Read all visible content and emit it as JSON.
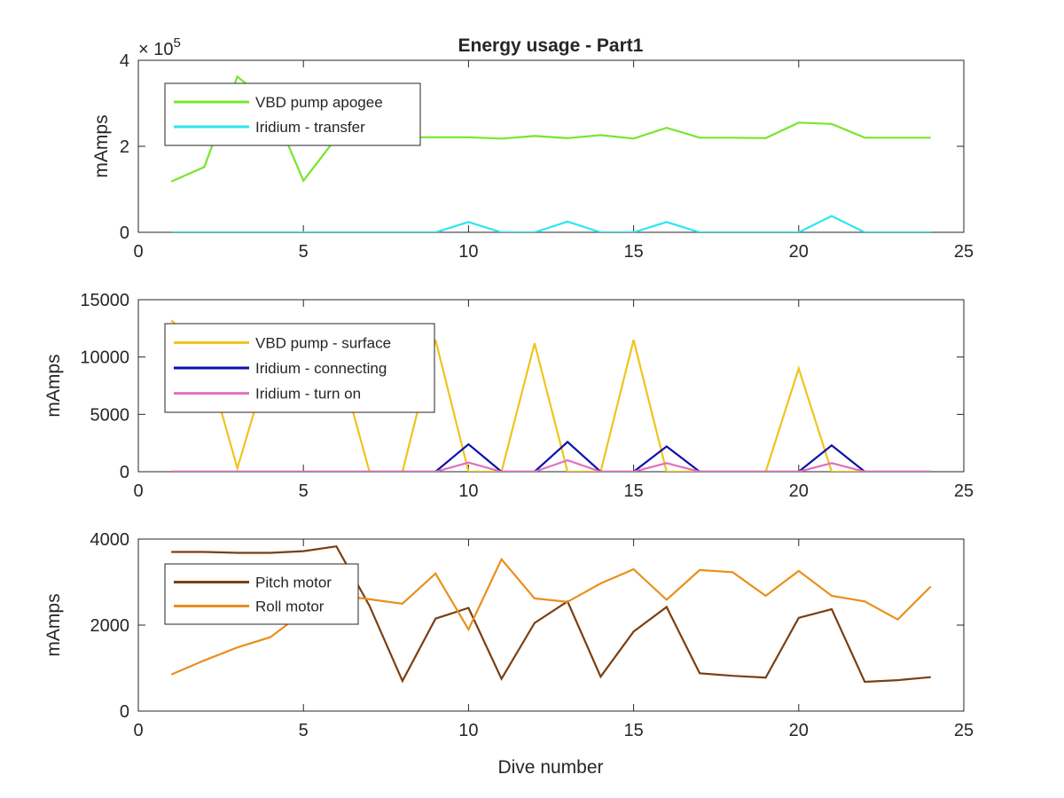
{
  "figure": {
    "title": "Energy usage - Part1",
    "xlabel": "Dive number"
  },
  "chart_data": [
    {
      "type": "line",
      "title": "Energy usage - Part1",
      "xlabel": "",
      "ylabel": "mAmps",
      "xlim": [
        0,
        25
      ],
      "ylim": [
        0,
        400000
      ],
      "xticks": [
        0,
        5,
        10,
        15,
        20,
        25
      ],
      "yticks": [
        0,
        200000,
        400000
      ],
      "ytick_labels": [
        "0",
        "2",
        "4"
      ],
      "y_exponent_base": "× 10",
      "y_exponent_power": "5",
      "grid": false,
      "legend_position": "top-left",
      "series": [
        {
          "name": "VBD pump apogee",
          "color": "#77e62c",
          "x": [
            1,
            2,
            3,
            4,
            5,
            6,
            7,
            8,
            9,
            10,
            11,
            12,
            13,
            14,
            15,
            16,
            17,
            18,
            19,
            20,
            21,
            22,
            23,
            24
          ],
          "values": [
            118000,
            152000,
            362000,
            300000,
            120000,
            220000,
            225000,
            221000,
            221000,
            221000,
            218000,
            224000,
            219000,
            226000,
            218000,
            243000,
            220000,
            220000,
            219000,
            255000,
            252000,
            220000,
            220000,
            220000
          ]
        },
        {
          "name": "Iridium - transfer",
          "color": "#2ce6f0",
          "x": [
            1,
            2,
            3,
            4,
            5,
            6,
            7,
            8,
            9,
            10,
            11,
            12,
            13,
            14,
            15,
            16,
            17,
            18,
            19,
            20,
            21,
            22,
            23,
            24
          ],
          "values": [
            0,
            0,
            0,
            0,
            0,
            0,
            0,
            0,
            0,
            24000,
            0,
            0,
            25000,
            0,
            0,
            24000,
            0,
            0,
            0,
            0,
            38000,
            0,
            0,
            0
          ]
        }
      ]
    },
    {
      "type": "line",
      "xlabel": "",
      "ylabel": "mAmps",
      "xlim": [
        0,
        25
      ],
      "ylim": [
        0,
        15000
      ],
      "xticks": [
        0,
        5,
        10,
        15,
        20,
        25
      ],
      "yticks": [
        0,
        5000,
        10000,
        15000
      ],
      "grid": false,
      "legend_position": "top-left",
      "series": [
        {
          "name": "VBD pump - surface",
          "color": "#f0c41c",
          "x": [
            1,
            2,
            3,
            4,
            5,
            6,
            7,
            8,
            9,
            10,
            11,
            12,
            13,
            14,
            15,
            16,
            17,
            18,
            19,
            20,
            21,
            22,
            23,
            24
          ],
          "values": [
            13200,
            10500,
            300,
            10000,
            10500,
            10500,
            0,
            0,
            11500,
            0,
            0,
            11200,
            0,
            0,
            11500,
            0,
            0,
            0,
            0,
            9000,
            0,
            0,
            0,
            0
          ]
        },
        {
          "name": "Iridium - connecting",
          "color": "#0a12a8",
          "x": [
            1,
            2,
            3,
            4,
            5,
            6,
            7,
            8,
            9,
            10,
            11,
            12,
            13,
            14,
            15,
            16,
            17,
            18,
            19,
            20,
            21,
            22,
            23,
            24
          ],
          "values": [
            0,
            0,
            0,
            0,
            0,
            0,
            0,
            0,
            0,
            2400,
            0,
            0,
            2600,
            0,
            0,
            2200,
            0,
            0,
            0,
            0,
            2300,
            0,
            0,
            0
          ]
        },
        {
          "name": "Iridium - turn on",
          "color": "#e070c0",
          "x": [
            1,
            2,
            3,
            4,
            5,
            6,
            7,
            8,
            9,
            10,
            11,
            12,
            13,
            14,
            15,
            16,
            17,
            18,
            19,
            20,
            21,
            22,
            23,
            24
          ],
          "values": [
            0,
            0,
            0,
            0,
            0,
            0,
            0,
            0,
            0,
            800,
            0,
            0,
            1000,
            0,
            0,
            750,
            0,
            0,
            0,
            0,
            750,
            0,
            0,
            0
          ]
        }
      ]
    },
    {
      "type": "line",
      "xlabel": "Dive number",
      "ylabel": "mAmps",
      "xlim": [
        0,
        25
      ],
      "ylim": [
        0,
        4000
      ],
      "xticks": [
        0,
        5,
        10,
        15,
        20,
        25
      ],
      "yticks": [
        0,
        2000,
        4000
      ],
      "grid": false,
      "legend_position": "top-left",
      "series": [
        {
          "name": "Pitch motor",
          "color": "#7b3f12",
          "x": [
            1,
            2,
            3,
            4,
            5,
            6,
            7,
            8,
            9,
            10,
            11,
            12,
            13,
            14,
            15,
            16,
            17,
            18,
            19,
            20,
            21,
            22,
            23,
            24
          ],
          "values": [
            3700,
            3700,
            3680,
            3680,
            3720,
            3830,
            2450,
            700,
            2150,
            2400,
            750,
            2050,
            2550,
            800,
            1850,
            2420,
            880,
            820,
            780,
            2170,
            2370,
            680,
            720,
            790
          ]
        },
        {
          "name": "Roll motor",
          "color": "#e8901c",
          "x": [
            1,
            2,
            3,
            4,
            5,
            6,
            7,
            8,
            9,
            10,
            11,
            12,
            13,
            14,
            15,
            16,
            17,
            18,
            19,
            20,
            21,
            22,
            23,
            24
          ],
          "values": [
            850,
            1180,
            1480,
            1720,
            2300,
            2700,
            2600,
            2500,
            3200,
            1900,
            3530,
            2620,
            2540,
            2970,
            3300,
            2590,
            3280,
            3230,
            2680,
            3260,
            2680,
            2550,
            2130,
            2900
          ]
        }
      ]
    }
  ]
}
